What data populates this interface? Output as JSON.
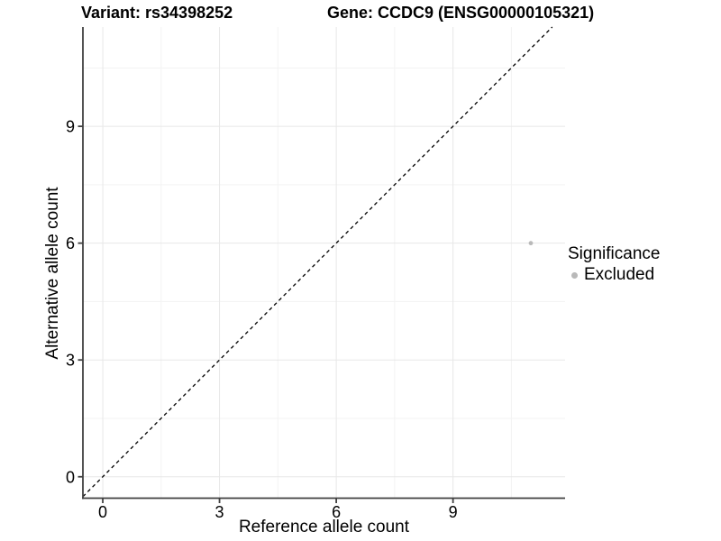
{
  "header": {
    "variant_title": "Variant: rs34398252",
    "gene_title": "Gene: CCDC9 (ENSG00000105321)"
  },
  "axes": {
    "x_label": "Reference allele count",
    "y_label": "Alternative allele count"
  },
  "legend": {
    "title": "Significance",
    "items": [
      {
        "label": "Excluded",
        "color": "#b9b9b9"
      }
    ]
  },
  "colors": {
    "background": "#ffffff",
    "text": "#000000",
    "axis_line": "#404040",
    "tick_mark": "#404040",
    "major_grid": "#e7e7e7",
    "minor_grid": "#f3f3f3",
    "reference_line": "#000000",
    "point": "#b9b9b9"
  },
  "chart_data": {
    "type": "scatter",
    "titles": [
      "Variant: rs34398252",
      "Gene: CCDC9 (ENSG00000105321)"
    ],
    "xlabel": "Reference allele count",
    "ylabel": "Alternative allele count",
    "xlim": [
      -0.51,
      11.88
    ],
    "ylim": [
      -0.55,
      11.55
    ],
    "x_ticks": [
      0,
      3,
      6,
      9
    ],
    "y_ticks": [
      0,
      3,
      6,
      9
    ],
    "x_minor_gridlines": [
      1.5,
      4.5,
      7.5,
      10.5
    ],
    "y_minor_gridlines": [
      1.5,
      4.5,
      7.5,
      10.5
    ],
    "grid": "major-and-minor",
    "legend_position": "right",
    "series": [
      {
        "name": "Excluded",
        "color": "#b9b9b9",
        "points": [
          {
            "x": 11,
            "y": 6
          }
        ]
      }
    ],
    "reference_line": {
      "style": "dashed",
      "slope": 1,
      "intercept": 0,
      "description": "identity line y = x"
    }
  }
}
